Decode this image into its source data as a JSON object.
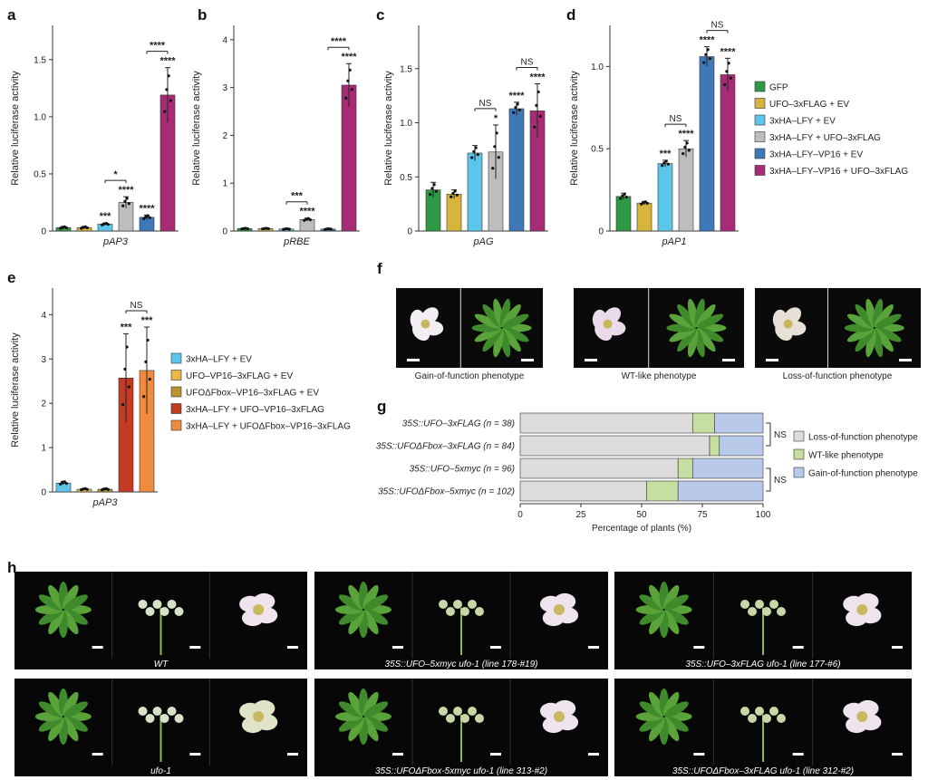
{
  "panel_letters": {
    "a": "a",
    "b": "b",
    "c": "c",
    "d": "d",
    "e": "e",
    "f": "f",
    "g": "g",
    "h": "h"
  },
  "colors": {
    "GFP": "#2f9a45",
    "UFO_EV": "#d9b43a",
    "LFY_EV": "#5cc6ea",
    "LFY_UFO": "#bdbdbd",
    "LFYVP16_EV": "#3e78b8",
    "LFYVP16_UFO": "#a82c75",
    "UFOVP16": "#e7b942",
    "UFOdF": "#b8952e",
    "LFY_UFOVP16": "#c23b22",
    "LFY_UFOdF": "#f08a3c",
    "loss": "#dcdcdc",
    "wt": "#c6dea0",
    "gain": "#b9c9ea"
  },
  "legend_top": [
    {
      "label": "GFP",
      "color": "#2f9a45"
    },
    {
      "label": "UFO–3xFLAG + EV",
      "color": "#d9b43a"
    },
    {
      "label": "3xHA–LFY + EV",
      "color": "#5cc6ea"
    },
    {
      "label": "3xHA–LFY + UFO–3xFLAG",
      "color": "#bdbdbd"
    },
    {
      "label": "3xHA–LFY–VP16 + EV",
      "color": "#3e78b8"
    },
    {
      "label": "3xHA–LFY–VP16 + UFO–3xFLAG",
      "color": "#a82c75"
    }
  ],
  "legend_e": [
    {
      "label": "3xHA–LFY + EV",
      "color": "#5cc6ea"
    },
    {
      "label": "UFO–VP16–3xFLAG + EV",
      "color": "#e7b942"
    },
    {
      "label": "UFOΔFbox–VP16–3xFLAG + EV",
      "color": "#b8952e"
    },
    {
      "label": "3xHA–LFY + UFO–VP16–3xFLAG",
      "color": "#c23b22"
    },
    {
      "label": "3xHA–LFY + UFOΔFbox–VP16–3xFLAG",
      "color": "#f08a3c"
    }
  ],
  "chart_data": [
    {
      "type": "bar",
      "panel": "a",
      "ylabel": "Relative luciferase activity",
      "xlabel": "pAP3",
      "ylim": [
        0,
        1.8
      ],
      "yticks": [
        "0",
        "0.5",
        "1.0",
        "1.5"
      ],
      "values": [
        0.03,
        0.03,
        0.06,
        0.25,
        0.12,
        1.19
      ],
      "errors": [
        0.01,
        0.01,
        0.01,
        0.05,
        0.02,
        0.24
      ],
      "stars": [
        "",
        "",
        "***",
        "****",
        "****",
        "****"
      ],
      "brackets": [
        {
          "from": 2,
          "to": 3,
          "label": "*"
        },
        {
          "from": 4,
          "to": 5,
          "label": "****"
        }
      ]
    },
    {
      "type": "bar",
      "panel": "b",
      "ylabel": "Relative luciferase activity",
      "xlabel": "pRBE",
      "ylim": [
        0,
        4.3
      ],
      "yticks": [
        "0",
        "1",
        "2",
        "3",
        "4"
      ],
      "values": [
        0.05,
        0.05,
        0.04,
        0.24,
        0.04,
        3.05
      ],
      "errors": [
        0.01,
        0.01,
        0.01,
        0.03,
        0.01,
        0.45
      ],
      "stars": [
        "",
        "",
        "",
        "****",
        "",
        ""
      ],
      "brackets": [
        {
          "from": 2,
          "to": 3,
          "label": "***"
        },
        {
          "from": 4,
          "to": 5,
          "label": "****"
        }
      ],
      "extra_stars": [
        {
          "bar": 5,
          "label": "****"
        }
      ]
    },
    {
      "type": "bar",
      "panel": "c",
      "ylabel": "Relative luciferase activity",
      "xlabel": "pAG",
      "ylim": [
        0,
        1.9
      ],
      "yticks": [
        "0",
        "0.5",
        "1.0",
        "1.5"
      ],
      "values": [
        0.38,
        0.34,
        0.72,
        0.73,
        1.13,
        1.11
      ],
      "errors": [
        0.07,
        0.04,
        0.07,
        0.25,
        0.06,
        0.25
      ],
      "stars": [
        "",
        "",
        "",
        "*",
        "****",
        "****"
      ],
      "brackets": [
        {
          "from": 2,
          "to": 3,
          "label": "NS"
        },
        {
          "from": 4,
          "to": 5,
          "label": "NS"
        }
      ]
    },
    {
      "type": "bar",
      "panel": "d",
      "ylabel": "Relative luciferase activity",
      "xlabel": "pAP1",
      "ylim": [
        0,
        1.25
      ],
      "yticks": [
        "0",
        "0.5",
        "1.0"
      ],
      "values": [
        0.21,
        0.17,
        0.41,
        0.5,
        1.06,
        0.95
      ],
      "errors": [
        0.02,
        0.01,
        0.02,
        0.05,
        0.06,
        0.1
      ],
      "stars": [
        "",
        "",
        "***",
        "****",
        "****",
        "****"
      ],
      "brackets": [
        {
          "from": 2,
          "to": 3,
          "label": "NS"
        },
        {
          "from": 4,
          "to": 5,
          "label": "NS"
        }
      ]
    },
    {
      "type": "bar",
      "panel": "e",
      "ylabel": "Relative luciferase activity",
      "xlabel": "pAP3",
      "ylim": [
        0,
        4.6
      ],
      "yticks": [
        "0",
        "1",
        "2",
        "3",
        "4"
      ],
      "values": [
        0.2,
        0.06,
        0.06,
        2.57,
        2.74
      ],
      "errors": [
        0.04,
        0.02,
        0.02,
        1.0,
        0.98
      ],
      "stars": [
        "",
        "",
        "",
        "***",
        "***"
      ],
      "brackets": [
        {
          "from": 3,
          "to": 4,
          "label": "NS"
        }
      ]
    },
    {
      "type": "bar",
      "panel": "g",
      "stacked": true,
      "horizontal": true,
      "xlabel": "Percentage of plants (%)",
      "xlim": [
        0,
        100
      ],
      "xticks": [
        "0",
        "25",
        "50",
        "75",
        "100"
      ],
      "categories": [
        "35S::UFO–3xFLAG (n = 38)",
        "35S::UFOΔFbox–3xFLAG (n = 84)",
        "35S::UFO–5xmyc (n = 96)",
        "35S::UFOΔFbox–5xmyc (n = 102)"
      ],
      "series": [
        {
          "name": "Loss-of-function phenotype",
          "values": [
            71,
            78,
            65,
            52
          ]
        },
        {
          "name": "WT-like phenotype",
          "values": [
            9,
            4,
            6,
            13
          ]
        },
        {
          "name": "Gain-of-function phenotype",
          "values": [
            20,
            18,
            29,
            35
          ]
        }
      ],
      "ns": [
        "NS",
        "NS"
      ]
    }
  ],
  "panel_f": {
    "captions": [
      "Gain-of-function phenotype",
      "WT-like phenotype",
      "Loss-of-function phenotype"
    ]
  },
  "panel_h": {
    "captions": [
      "WT",
      "35S::UFO–5xmyc ufo-1 (line 178-#19)",
      "35S::UFO–3xFLAG ufo-1 (line 177-#6)",
      "ufo-1",
      "35S::UFOΔFbox-5xmyc ufo-1 (line 313-#2)",
      "35S::UFOΔFbox–3xFLAG ufo-1 (line 312-#2)"
    ]
  }
}
